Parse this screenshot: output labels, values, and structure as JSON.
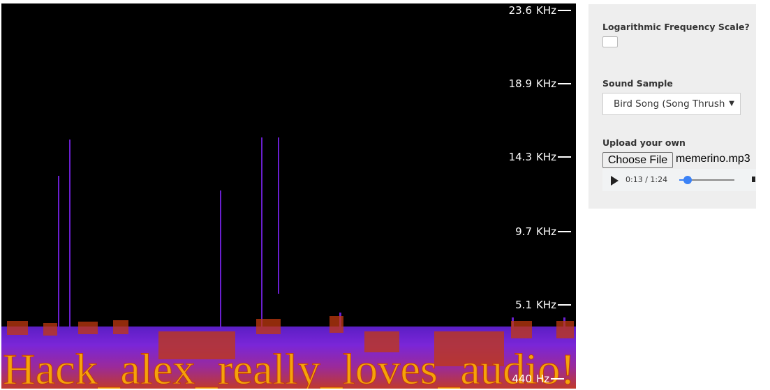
{
  "spectrogram": {
    "freq_labels": [
      {
        "num": "23.6",
        "unit": "KHz"
      },
      {
        "num": "18.9",
        "unit": "KHz"
      },
      {
        "num": "14.3",
        "unit": "KHz"
      },
      {
        "num": "9.7",
        "unit": "KHz"
      },
      {
        "num": "5.1",
        "unit": "KHz"
      },
      {
        "num": "440",
        "unit": "Hz"
      }
    ],
    "text_in_image": "Hack_alex_really_loves_audio!",
    "colors": {
      "background": "#000000",
      "low": "#6a1fd0",
      "mid": "#c2390f",
      "high": "#f5a30a"
    }
  },
  "controls": {
    "log_scale_label": "Logarithmic Frequency Scale?",
    "log_scale_checked": false,
    "sound_sample_label": "Sound Sample",
    "sound_sample_value": "Bird Song (Song Thrush",
    "upload_label": "Upload your own",
    "choose_file_label": "Choose File",
    "file_name": "memerino.mp3",
    "player": {
      "time": "0:13 / 1:24",
      "progress": 0.155
    }
  }
}
